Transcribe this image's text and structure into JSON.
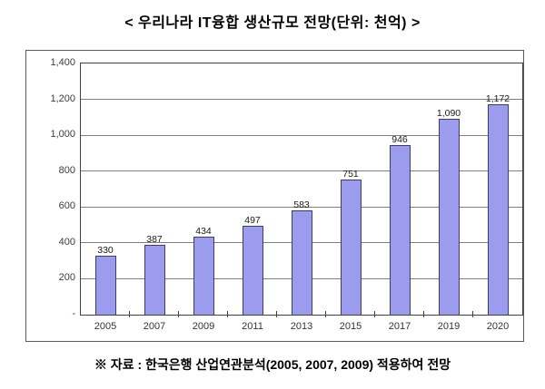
{
  "title": "< 우리나라 IT융합 생산규모 전망(단위: 천억) >",
  "source_note": "※ 자료 : 한국은행 산업연관분석(2005, 2007, 2009) 적용하여 전망",
  "chart_data": {
    "type": "bar",
    "title": "우리나라 IT융합 생산규모 전망",
    "unit_label": "천억",
    "categories": [
      "2005",
      "2007",
      "2009",
      "2011",
      "2013",
      "2015",
      "2017",
      "2019",
      "2020"
    ],
    "values": [
      330,
      387,
      434,
      497,
      583,
      751,
      946,
      1090,
      1172
    ],
    "value_labels": [
      "330",
      "387",
      "434",
      "497",
      "583",
      "751",
      "946",
      "1,090",
      "1,172"
    ],
    "xlabel": "",
    "ylabel": "",
    "ylim": [
      0,
      1400
    ],
    "ytick_interval": 200,
    "ytick_labels": [
      "1,400",
      "1,200",
      "1,000",
      "800",
      "600",
      "400",
      "200",
      "-"
    ],
    "grid": true,
    "legend": "none",
    "colors": {
      "bar_fill": "#9c9cef",
      "bar_border": "#3c3c64",
      "gridline": "#7f7f7f",
      "axis": "#404040",
      "text": "#1a1a1a"
    }
  }
}
